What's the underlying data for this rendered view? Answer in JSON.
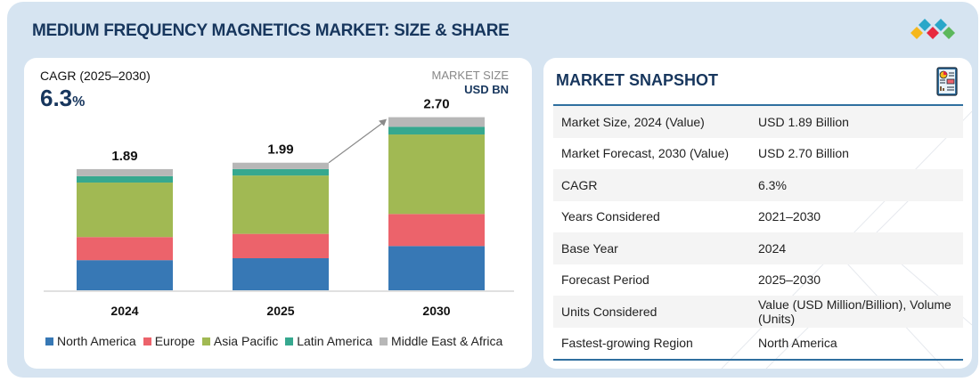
{
  "header": {
    "title": "MEDIUM FREQUENCY MAGNETICS MARKET: SIZE & SHARE",
    "logo_icon": "brand-diamonds-icon",
    "logo_colors": [
      "#2aa7c9",
      "#2aa7c9",
      "#f5b71b",
      "#e8293f",
      "#5cb85c"
    ]
  },
  "left_panel": {
    "cagr_label": "CAGR (2025–2030)",
    "cagr_value": "6.3",
    "cagr_unit": "%",
    "market_size_label": "MARKET SIZE",
    "market_size_unit": "USD BN"
  },
  "chart_data": {
    "type": "bar",
    "stacked": true,
    "title": "",
    "xlabel": "",
    "ylabel": "USD BN",
    "categories": [
      "2024",
      "2025",
      "2030"
    ],
    "totals": [
      "1.89",
      "1.99",
      "2.70"
    ],
    "ylim": [
      0,
      2.7
    ],
    "grid": false,
    "legend_position": "bottom",
    "arrow_annotation": {
      "from": "2025",
      "to": "2030"
    },
    "series": [
      {
        "name": "North America",
        "color": "#3778b5",
        "values": [
          0.47,
          0.5,
          0.69
        ]
      },
      {
        "name": "Europe",
        "color": "#ec636b",
        "values": [
          0.36,
          0.38,
          0.5
        ]
      },
      {
        "name": "Asia Pacific",
        "color": "#a1b953",
        "values": [
          0.85,
          0.91,
          1.24
        ]
      },
      {
        "name": "Latin America",
        "color": "#36a88f",
        "values": [
          0.1,
          0.1,
          0.12
        ]
      },
      {
        "name": "Middle East & Africa",
        "color": "#b7b7b7",
        "values": [
          0.11,
          0.1,
          0.15
        ]
      }
    ]
  },
  "snapshot": {
    "title": "MARKET SNAPSHOT",
    "icon": "report-document-icon",
    "rows": [
      {
        "key": "Market Size, 2024 (Value)",
        "value": "USD 1.89 Billion"
      },
      {
        "key": "Market Forecast, 2030 (Value)",
        "value": "USD 2.70 Billion"
      },
      {
        "key": "CAGR",
        "value": "6.3%"
      },
      {
        "key": "Years Considered",
        "value": "2021–2030"
      },
      {
        "key": "Base Year",
        "value": "2024"
      },
      {
        "key": "Forecast Period",
        "value": "2025–2030"
      },
      {
        "key": "Units Considered",
        "value": "Value (USD Million/Billion), Volume (Units)"
      },
      {
        "key": "Fastest-growing Region",
        "value": "North America"
      }
    ]
  }
}
